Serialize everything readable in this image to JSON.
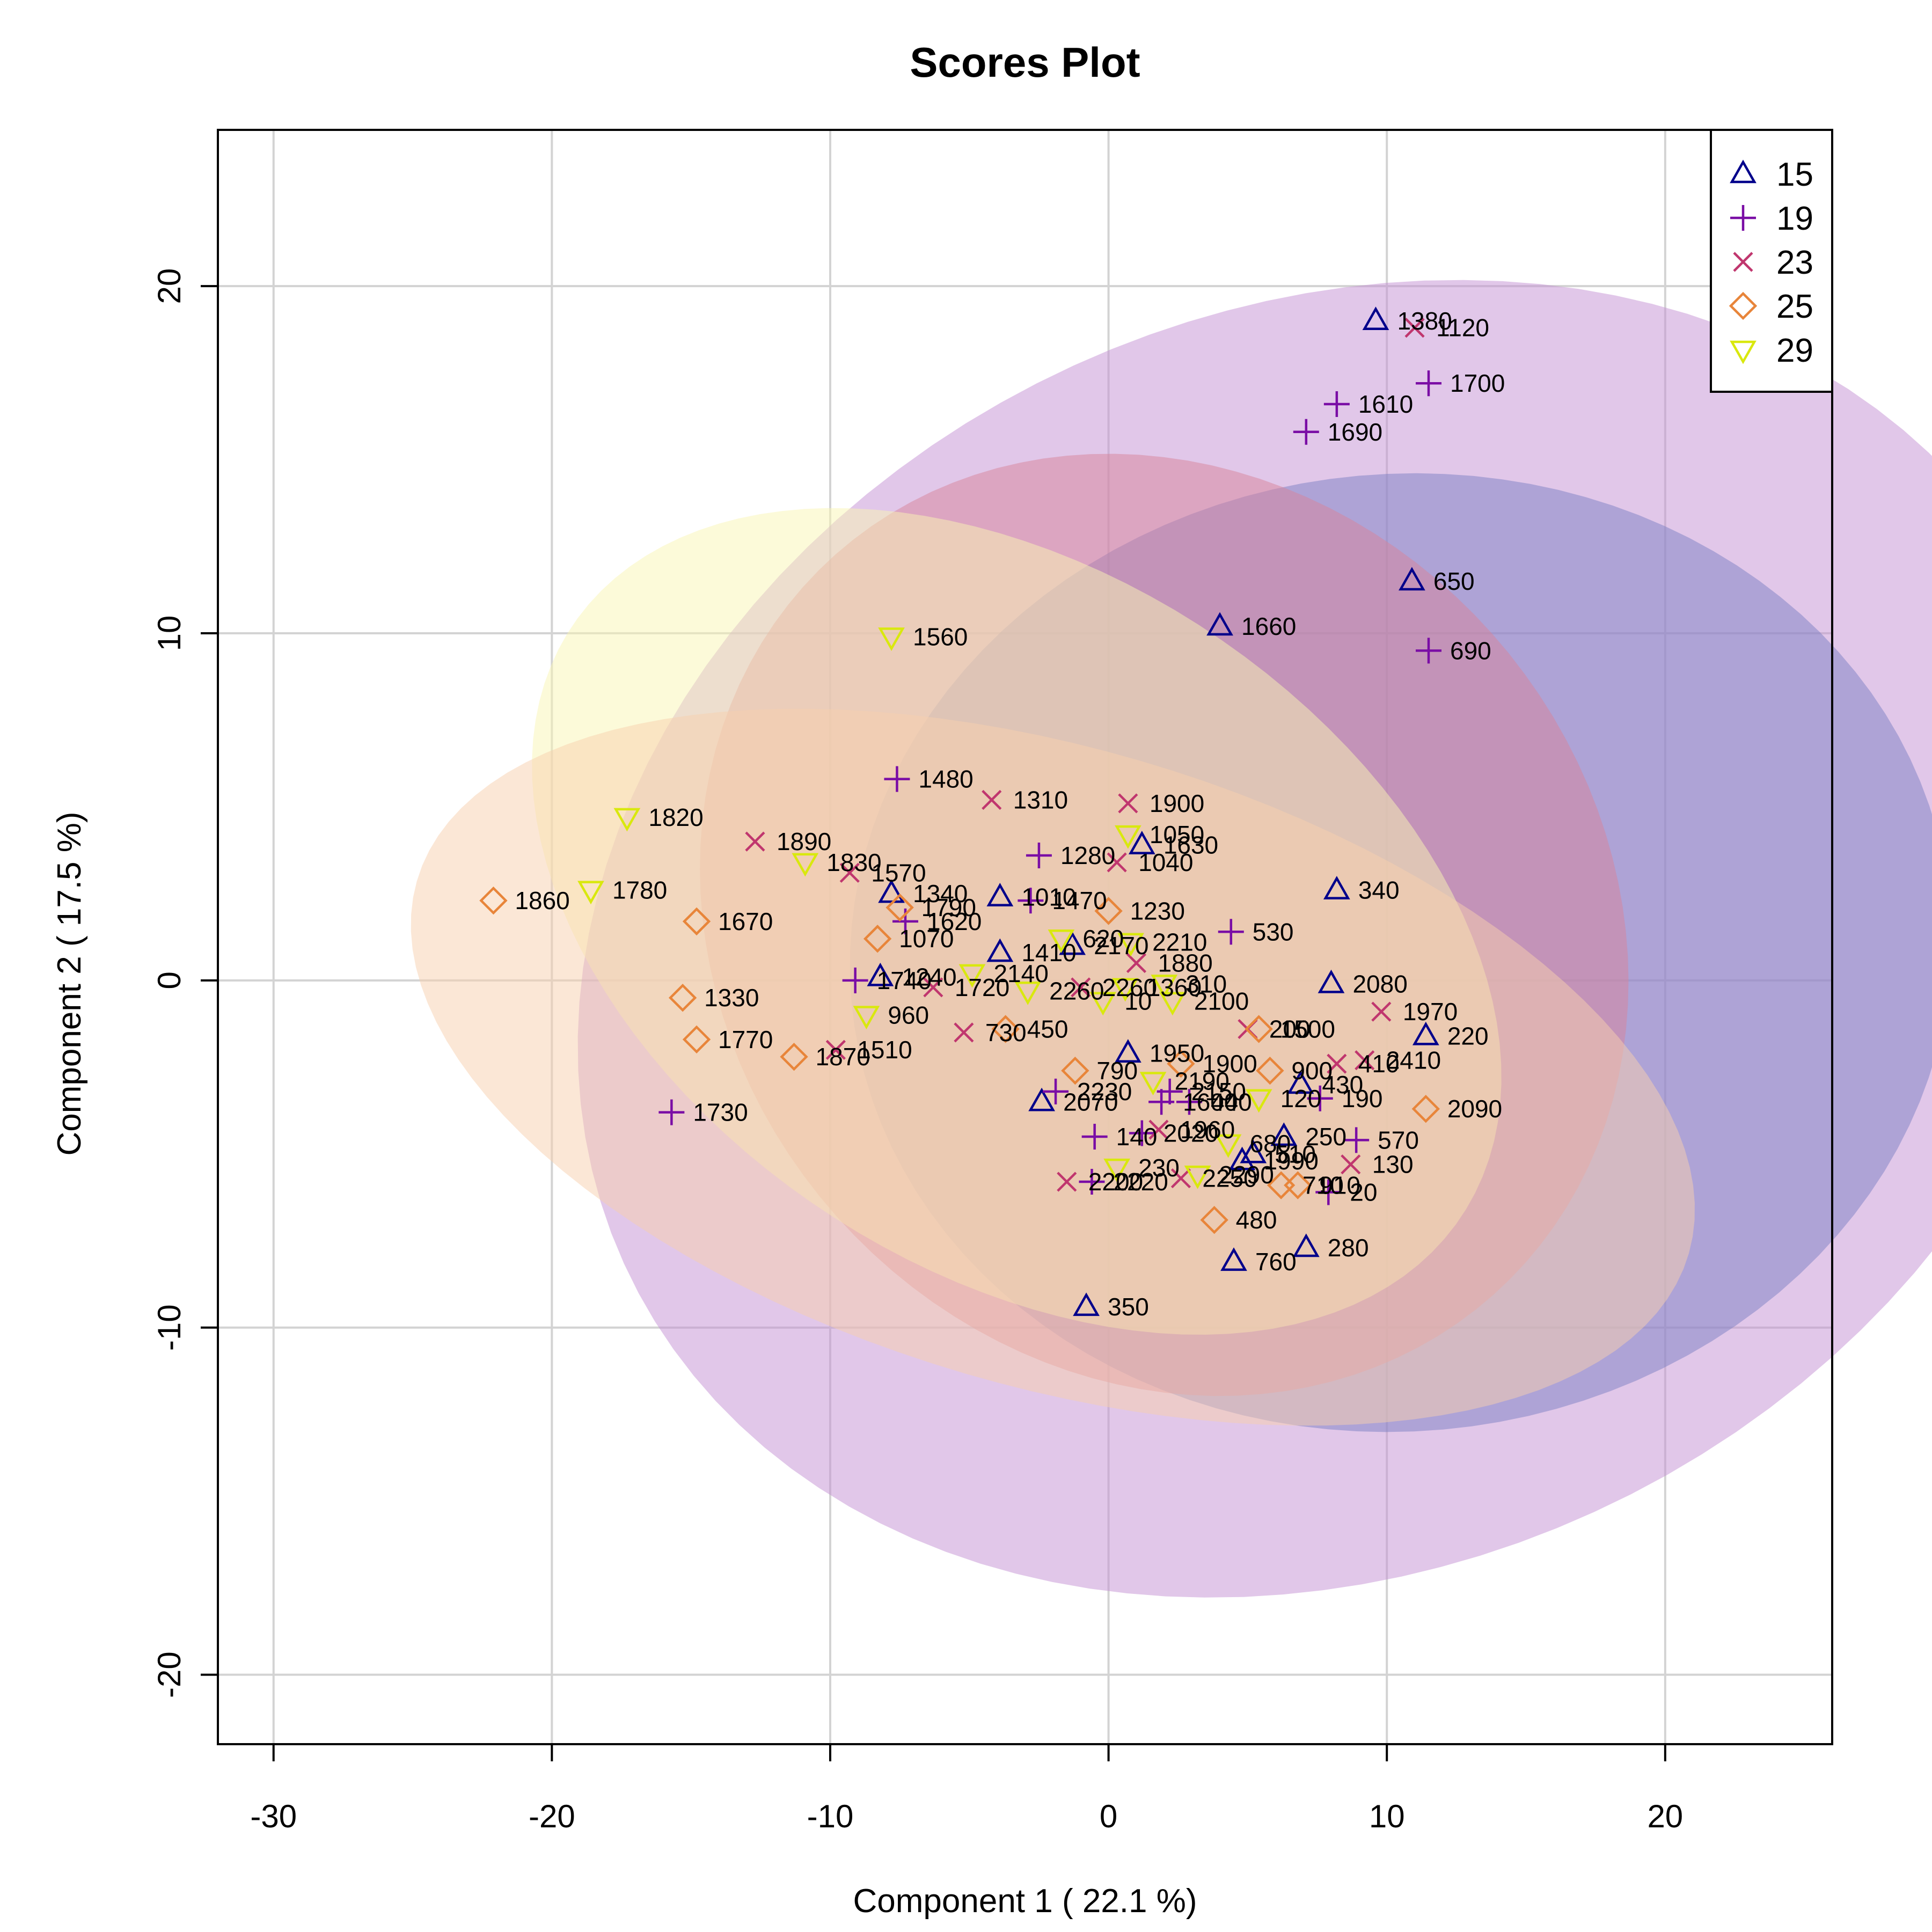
{
  "chart_data": {
    "type": "scatter",
    "title": "Scores Plot",
    "xlabel": "Component 1 ( 22.1 %)",
    "ylabel": "Component 2 ( 17.5 %)",
    "xlim": [
      -32,
      26
    ],
    "ylim": [
      -22,
      24.5
    ],
    "xticks": [
      -30,
      -20,
      -10,
      0,
      10,
      20
    ],
    "yticks": [
      -20,
      -10,
      0,
      10,
      20
    ],
    "xtick_labels": [
      "-30",
      "-20",
      "-10",
      "0",
      "10",
      "20"
    ],
    "ytick_labels": [
      "-20",
      "-10",
      "0",
      "10",
      "20"
    ],
    "grid": true,
    "legend_position": "top-right",
    "series": [
      {
        "name": "15",
        "marker": "triangle-up",
        "color": "#00008B",
        "ellipse_color": "#7b7fc4",
        "points": [
          {
            "label": "1380",
            "x": 9.6,
            "y": 19.0
          },
          {
            "label": "650",
            "x": 10.9,
            "y": 11.5
          },
          {
            "label": "1660",
            "x": 4.0,
            "y": 10.2
          },
          {
            "label": "1630",
            "x": 1.2,
            "y": 3.9
          },
          {
            "label": "340",
            "x": 8.2,
            "y": 2.6
          },
          {
            "label": "1340",
            "x": -7.8,
            "y": 2.5
          },
          {
            "label": "1010",
            "x": -3.9,
            "y": 2.4
          },
          {
            "label": "2170",
            "x": -1.3,
            "y": 1.0
          },
          {
            "label": "1410",
            "x": -3.9,
            "y": 0.8
          },
          {
            "label": "1240",
            "x": -8.2,
            "y": 0.1
          },
          {
            "label": "2080",
            "x": 8.0,
            "y": -0.1
          },
          {
            "label": "220",
            "x": 11.4,
            "y": -1.6
          },
          {
            "label": "1950",
            "x": 0.7,
            "y": -2.1
          },
          {
            "label": "430",
            "x": 6.9,
            "y": -3.0
          },
          {
            "label": "2070",
            "x": -2.4,
            "y": -3.5
          },
          {
            "label": "250",
            "x": 6.3,
            "y": -4.5
          },
          {
            "label": "510",
            "x": 5.2,
            "y": -5.0
          },
          {
            "label": "1990",
            "x": 4.8,
            "y": -5.2
          },
          {
            "label": "280",
            "x": 7.1,
            "y": -7.7
          },
          {
            "label": "760",
            "x": 4.5,
            "y": -8.1
          },
          {
            "label": "350",
            "x": -0.8,
            "y": -9.4
          }
        ]
      },
      {
        "name": "19",
        "marker": "plus",
        "color": "#7A0DA5",
        "ellipse_color": "#c38fd4",
        "points": [
          {
            "label": "1700",
            "x": 11.5,
            "y": 17.2
          },
          {
            "label": "1610",
            "x": 8.2,
            "y": 16.6
          },
          {
            "label": "1690",
            "x": 7.1,
            "y": 15.8
          },
          {
            "label": "690",
            "x": 11.5,
            "y": 9.5
          },
          {
            "label": "1480",
            "x": -7.6,
            "y": 5.8
          },
          {
            "label": "1280",
            "x": -2.5,
            "y": 3.6
          },
          {
            "label": "1470",
            "x": -2.8,
            "y": 2.3
          },
          {
            "label": "1620",
            "x": -7.3,
            "y": 1.7
          },
          {
            "label": "530",
            "x": 4.4,
            "y": 1.4
          },
          {
            "label": "1740",
            "x": -9.1,
            "y": 0.0
          },
          {
            "label": "2230",
            "x": -1.9,
            "y": -3.2
          },
          {
            "label": "190",
            "x": 7.6,
            "y": -3.4
          },
          {
            "label": "1730",
            "x": -15.7,
            "y": -3.8
          },
          {
            "label": "440",
            "x": 2.9,
            "y": -3.5
          },
          {
            "label": "2150",
            "x": 2.2,
            "y": -3.2
          },
          {
            "label": "1600",
            "x": 1.9,
            "y": -3.5
          },
          {
            "label": "140",
            "x": -0.5,
            "y": -4.5
          },
          {
            "label": "2020",
            "x": 1.2,
            "y": -4.4
          },
          {
            "label": "570",
            "x": 8.9,
            "y": -4.6
          },
          {
            "label": "2220",
            "x": -0.6,
            "y": -5.8
          },
          {
            "label": "20",
            "x": 7.9,
            "y": -6.1
          }
        ]
      },
      {
        "name": "23",
        "marker": "cross",
        "color": "#C0366E",
        "ellipse_color": "#d7849a",
        "points": [
          {
            "label": "1120",
            "x": 11.0,
            "y": 18.8
          },
          {
            "label": "1310",
            "x": -4.2,
            "y": 5.2
          },
          {
            "label": "1900",
            "x": 0.7,
            "y": 5.1
          },
          {
            "label": "1890",
            "x": -12.7,
            "y": 4.0
          },
          {
            "label": "1040",
            "x": 0.3,
            "y": 3.4
          },
          {
            "label": "1570",
            "x": -9.3,
            "y": 3.1
          },
          {
            "label": "1880",
            "x": 1.0,
            "y": 0.5
          },
          {
            "label": "1720",
            "x": -6.3,
            "y": -0.2
          },
          {
            "label": "2260",
            "x": -1.0,
            "y": -0.2
          },
          {
            "label": "1970",
            "x": 9.8,
            "y": -0.9
          },
          {
            "label": "730",
            "x": -5.2,
            "y": -1.5
          },
          {
            "label": "200",
            "x": 5.0,
            "y": -1.4
          },
          {
            "label": "1510",
            "x": -9.8,
            "y": -2.0
          },
          {
            "label": "2410",
            "x": 9.2,
            "y": -2.3
          },
          {
            "label": "410",
            "x": 8.2,
            "y": -2.4
          },
          {
            "label": "2200",
            "x": -1.5,
            "y": -5.8
          },
          {
            "label": "130",
            "x": 8.7,
            "y": -5.3
          },
          {
            "label": "2250",
            "x": 2.6,
            "y": -5.7
          },
          {
            "label": "1960",
            "x": 1.8,
            "y": -4.3
          }
        ]
      },
      {
        "name": "25",
        "marker": "diamond",
        "color": "#E8853A",
        "ellipse_color": "#f8cfae",
        "points": [
          {
            "label": "1860",
            "x": -22.1,
            "y": 2.3
          },
          {
            "label": "1670",
            "x": -14.8,
            "y": 1.7
          },
          {
            "label": "1230",
            "x": 0.0,
            "y": 2.0
          },
          {
            "label": "1790",
            "x": -7.5,
            "y": 2.1
          },
          {
            "label": "1070",
            "x": -8.3,
            "y": 1.2
          },
          {
            "label": "1330",
            "x": -15.3,
            "y": -0.5
          },
          {
            "label": "1770",
            "x": -14.8,
            "y": -1.7
          },
          {
            "label": "1870",
            "x": -11.3,
            "y": -2.2
          },
          {
            "label": "450",
            "x": -3.7,
            "y": -1.4
          },
          {
            "label": "1500",
            "x": 5.4,
            "y": -1.4
          },
          {
            "label": "1900b",
            "x": 2.6,
            "y": -2.4
          },
          {
            "label": "900",
            "x": 5.8,
            "y": -2.6
          },
          {
            "label": "790",
            "x": -1.2,
            "y": -2.6
          },
          {
            "label": "2090",
            "x": 11.4,
            "y": -3.7
          },
          {
            "label": "710",
            "x": 6.2,
            "y": -5.9
          },
          {
            "label": "910",
            "x": 6.8,
            "y": -5.9
          },
          {
            "label": "480",
            "x": 3.8,
            "y": -6.9
          }
        ]
      },
      {
        "name": "29",
        "marker": "triangle-down",
        "color": "#D9E80E",
        "ellipse_color": "#f9f6b3",
        "points": [
          {
            "label": "1560",
            "x": -7.8,
            "y": 9.9
          },
          {
            "label": "1820",
            "x": -17.3,
            "y": 4.7
          },
          {
            "label": "1050",
            "x": 0.7,
            "y": 4.2
          },
          {
            "label": "1830",
            "x": -10.9,
            "y": 3.4
          },
          {
            "label": "1780",
            "x": -18.6,
            "y": 2.6
          },
          {
            "label": "620",
            "x": -1.7,
            "y": 1.2
          },
          {
            "label": "2210",
            "x": 0.8,
            "y": 1.1
          },
          {
            "label": "2140",
            "x": -4.9,
            "y": 0.2
          },
          {
            "label": "310",
            "x": 2.0,
            "y": -0.1
          },
          {
            "label": "1360",
            "x": 0.6,
            "y": -0.2
          },
          {
            "label": "2260b",
            "x": -2.9,
            "y": -0.3
          },
          {
            "label": "10",
            "x": -0.2,
            "y": -0.6
          },
          {
            "label": "2100",
            "x": 2.3,
            "y": -0.6
          },
          {
            "label": "960",
            "x": -8.7,
            "y": -1.0
          },
          {
            "label": "2190",
            "x": 1.6,
            "y": -2.9
          },
          {
            "label": "120",
            "x": 5.4,
            "y": -3.4
          },
          {
            "label": "680",
            "x": 4.3,
            "y": -4.7
          },
          {
            "label": "230",
            "x": 0.3,
            "y": -5.4
          },
          {
            "label": "2290",
            "x": 3.2,
            "y": -5.6
          }
        ]
      }
    ],
    "ellipses": [
      {
        "series": "19",
        "center": [
          8.1,
          1.2
        ],
        "semi_axes": [
          18.5,
          27.5
        ],
        "angle_deg": -78
      },
      {
        "series": "15",
        "center": [
          10.5,
          0.8
        ],
        "semi_axes": [
          13.8,
          19.8
        ],
        "angle_deg": -88
      },
      {
        "series": "23",
        "center": [
          2.0,
          1.6
        ],
        "semi_axes": [
          16.9,
          13.3
        ],
        "angle_deg": -15
      },
      {
        "series": "29",
        "center": [
          -3.3,
          1.7
        ],
        "semi_axes": [
          18.3,
          10.5
        ],
        "angle_deg": -22
      },
      {
        "series": "25",
        "center": [
          -2.0,
          -2.5
        ],
        "semi_axes": [
          23.5,
          9.3
        ],
        "angle_deg": -12
      }
    ],
    "display_labels": {
      "1900b": "1900",
      "2260b": "2260"
    }
  }
}
